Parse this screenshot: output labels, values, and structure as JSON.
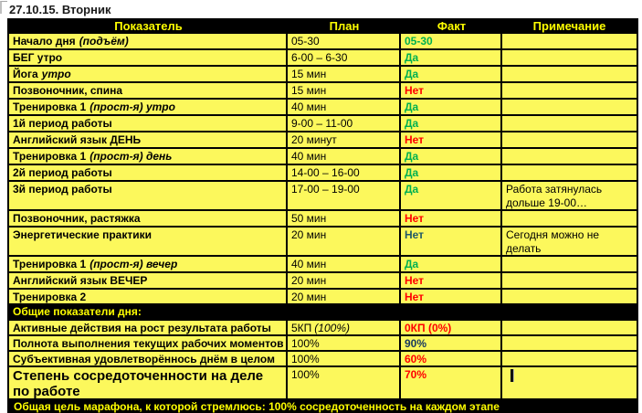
{
  "title": "27.10.15. Вторник",
  "columns": {
    "indicator": "Показатель",
    "plan": "План",
    "fact": "Факт",
    "note": "Примечание"
  },
  "colors": {
    "cell_yellow": "#FCF85C",
    "header_bg": "#000000",
    "header_text": "#FFFF00",
    "green": "#00B050",
    "red": "#FF0000",
    "teal": "#215968",
    "navy": "#17375E"
  },
  "rows": [
    {
      "label": "Начало дня",
      "label_italic": "(подъём)",
      "plan": "05-30",
      "fact": "05-30",
      "fact_color": "#00B050",
      "note": ""
    },
    {
      "label": "БЕГ утро",
      "label_italic": "",
      "plan": "6-00 – 6-30",
      "fact": "Да",
      "fact_color": "#00B050",
      "note": ""
    },
    {
      "label": "Йога",
      "label_italic": "утро",
      "plan": "15 мин",
      "fact": "Да",
      "fact_color": "#00B050",
      "note": ""
    },
    {
      "label": "Позвоночник, спина",
      "label_italic": "",
      "plan": "15 мин",
      "fact": "Нет",
      "fact_color": "#FF0000",
      "note": ""
    },
    {
      "label": "Тренировка 1",
      "label_italic": "(прост-я) утро",
      "plan": "40 мин",
      "fact": "Да",
      "fact_color": "#00B050",
      "note": ""
    },
    {
      "label": "1й период работы",
      "label_italic": "",
      "plan": "9-00 – 11-00",
      "fact": "Да",
      "fact_color": "#00B050",
      "note": ""
    },
    {
      "label": "Английский язык ДЕНЬ",
      "label_italic": "",
      "plan": "20 минут",
      "fact": "Нет",
      "fact_color": "#FF0000",
      "note": ""
    },
    {
      "label": "Тренировка 1",
      "label_italic": "(прост-я) день",
      "plan": "40 мин",
      "fact": "Да",
      "fact_color": "#00B050",
      "note": ""
    },
    {
      "label": "2й период работы",
      "label_italic": "",
      "plan": "14-00 – 16-00",
      "fact": "Да",
      "fact_color": "#00B050",
      "note": ""
    },
    {
      "label": "3й период работы",
      "label_italic": "",
      "plan": "17-00 – 19-00",
      "fact": "Да",
      "fact_color": "#00B050",
      "note": "Работа затянулась дольше 19-00…"
    },
    {
      "label": "Позвоночник, растяжка",
      "label_italic": "",
      "plan": "50 мин",
      "fact": "Нет",
      "fact_color": "#FF0000",
      "note": ""
    },
    {
      "label": "Энергетические практики",
      "label_italic": "",
      "plan": "20 мин",
      "fact": "Нет",
      "fact_color": "#215968",
      "note": "Сегодня можно не делать"
    },
    {
      "label": "Тренировка 1",
      "label_italic": "(прост-я) вечер",
      "plan": "40 мин",
      "fact": "Да",
      "fact_color": "#00B050",
      "note": ""
    },
    {
      "label": "Английский язык ВЕЧЕР",
      "label_italic": "",
      "plan": "20 мин",
      "fact": "Нет",
      "fact_color": "#FF0000",
      "note": ""
    },
    {
      "label": "Тренировка 2",
      "label_italic": "",
      "plan": "20 мин",
      "fact": "Нет",
      "fact_color": "#FF0000",
      "note": ""
    }
  ],
  "section_header": "Общие показатели дня:",
  "summary": [
    {
      "label": "Активные действия  на рост результата работы",
      "plan": "5КП",
      "plan_italic": "(100%)",
      "fact": "0КП (0%)",
      "fact_color": "#FF0000",
      "note": ""
    },
    {
      "label": "Полнота выполнения  текущих рабочих моментов",
      "plan": "100%",
      "plan_italic": "",
      "fact": "90%",
      "fact_color": "#17375E",
      "note": ""
    },
    {
      "label": "Субъективная  удовлетворённось  днём в целом",
      "plan": "100%",
      "plan_italic": "",
      "fact": "60%",
      "fact_color": "#FF0000",
      "note": ""
    },
    {
      "label": "Степень сосредоточенности на деле по работе",
      "plan": "100%",
      "plan_italic": "",
      "fact": "70%",
      "fact_color": "#FF0000",
      "note": ""
    }
  ],
  "footer": "Общая цель марафона,  к которой стремлюсь:  100% сосредоточенность  на каждом этапе"
}
